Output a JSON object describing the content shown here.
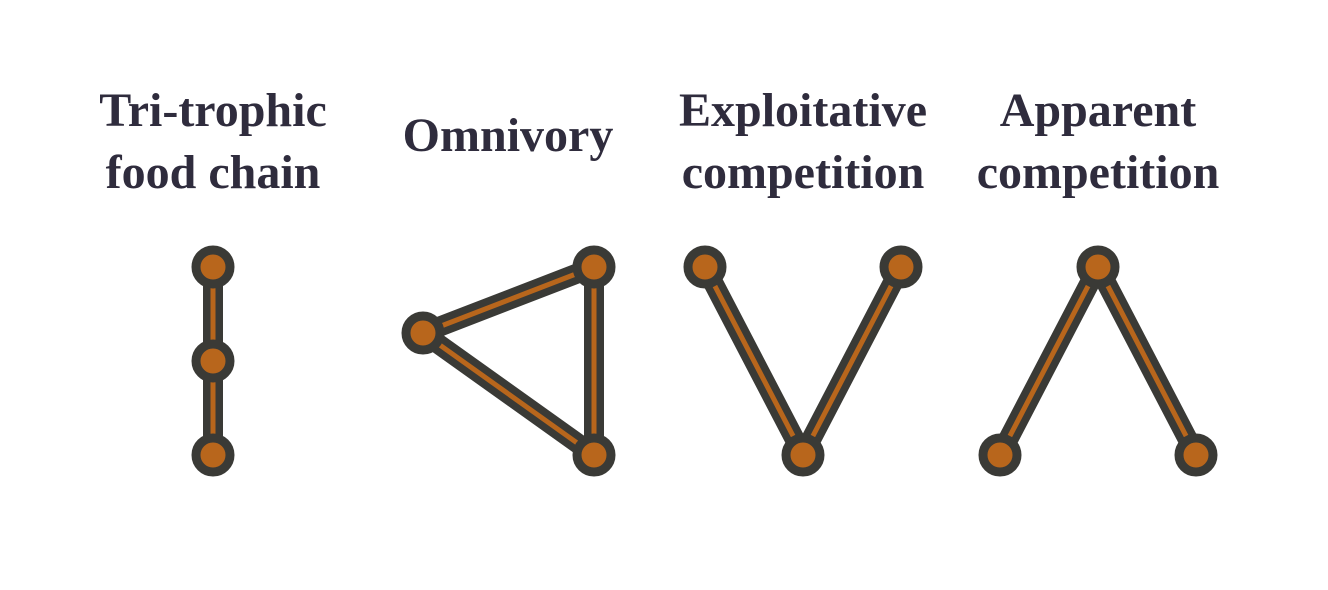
{
  "colors": {
    "title_text": "#2f2c3d",
    "node_fill": "#b8661c",
    "edge_inner": "#b8661c",
    "outline": "#3a3a36",
    "background": "#ffffff"
  },
  "motifs": [
    {
      "id": "tritrophic",
      "title_lines": [
        "Tri-trophic",
        "food chain"
      ],
      "nodes": [
        "top",
        "middle",
        "bottom"
      ],
      "edges": [
        [
          "top",
          "middle"
        ],
        [
          "middle",
          "bottom"
        ]
      ]
    },
    {
      "id": "omnivory",
      "title_lines": [
        "Omnivory"
      ],
      "nodes": [
        "top",
        "left",
        "bottom"
      ],
      "edges": [
        [
          "left",
          "top"
        ],
        [
          "left",
          "bottom"
        ],
        [
          "top",
          "bottom"
        ]
      ]
    },
    {
      "id": "exploitative",
      "title_lines": [
        "Exploitative",
        "competition"
      ],
      "nodes": [
        "left",
        "right",
        "bottom"
      ],
      "edges": [
        [
          "left",
          "bottom"
        ],
        [
          "right",
          "bottom"
        ]
      ]
    },
    {
      "id": "apparent",
      "title_lines": [
        "Apparent",
        "competition"
      ],
      "nodes": [
        "top",
        "left",
        "right"
      ],
      "edges": [
        [
          "top",
          "left"
        ],
        [
          "top",
          "right"
        ]
      ]
    }
  ]
}
